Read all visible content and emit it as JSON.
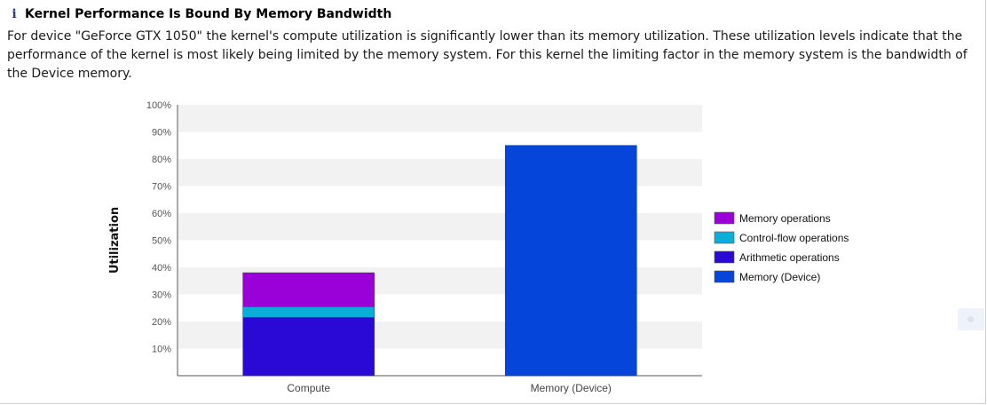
{
  "header": {
    "icon": "info-icon",
    "icon_glyph": "i",
    "title": "Kernel Performance Is Bound By Memory Bandwidth"
  },
  "description": "For device \"GeForce GTX 1050\" the kernel's compute utilization is significantly lower than its memory utilization. These utilization levels indicate that the performance of the kernel is most likely being limited by the memory system. For this kernel the limiting factor in the memory system is the bandwidth of the Device memory.",
  "chart_data": {
    "type": "bar",
    "stacked": true,
    "categories": [
      "Compute",
      "Memory (Device)"
    ],
    "series": [
      {
        "name": "Arithmetic operations",
        "color": "#2a09d6",
        "values": [
          21.5,
          0
        ]
      },
      {
        "name": "Control-flow operations",
        "color": "#0aaed8",
        "values": [
          4,
          0
        ]
      },
      {
        "name": "Memory operations",
        "color": "#9a00d8",
        "values": [
          12.5,
          0
        ]
      },
      {
        "name": "Memory (Device)",
        "color": "#0545d9",
        "values": [
          0,
          85
        ]
      }
    ],
    "legend_order": [
      "Memory operations",
      "Control-flow operations",
      "Arithmetic operations",
      "Memory (Device)"
    ],
    "ylabel": "Utilization",
    "xlabel": "",
    "ylim": [
      0,
      100
    ],
    "yticks": [
      "10%",
      "20%",
      "30%",
      "40%",
      "50%",
      "60%",
      "70%",
      "80%",
      "90%",
      "100%"
    ],
    "yticks_values": [
      10,
      20,
      30,
      40,
      50,
      60,
      70,
      80,
      90,
      100
    ],
    "grid": "alternating horizontal bands",
    "legend_position": "right"
  }
}
